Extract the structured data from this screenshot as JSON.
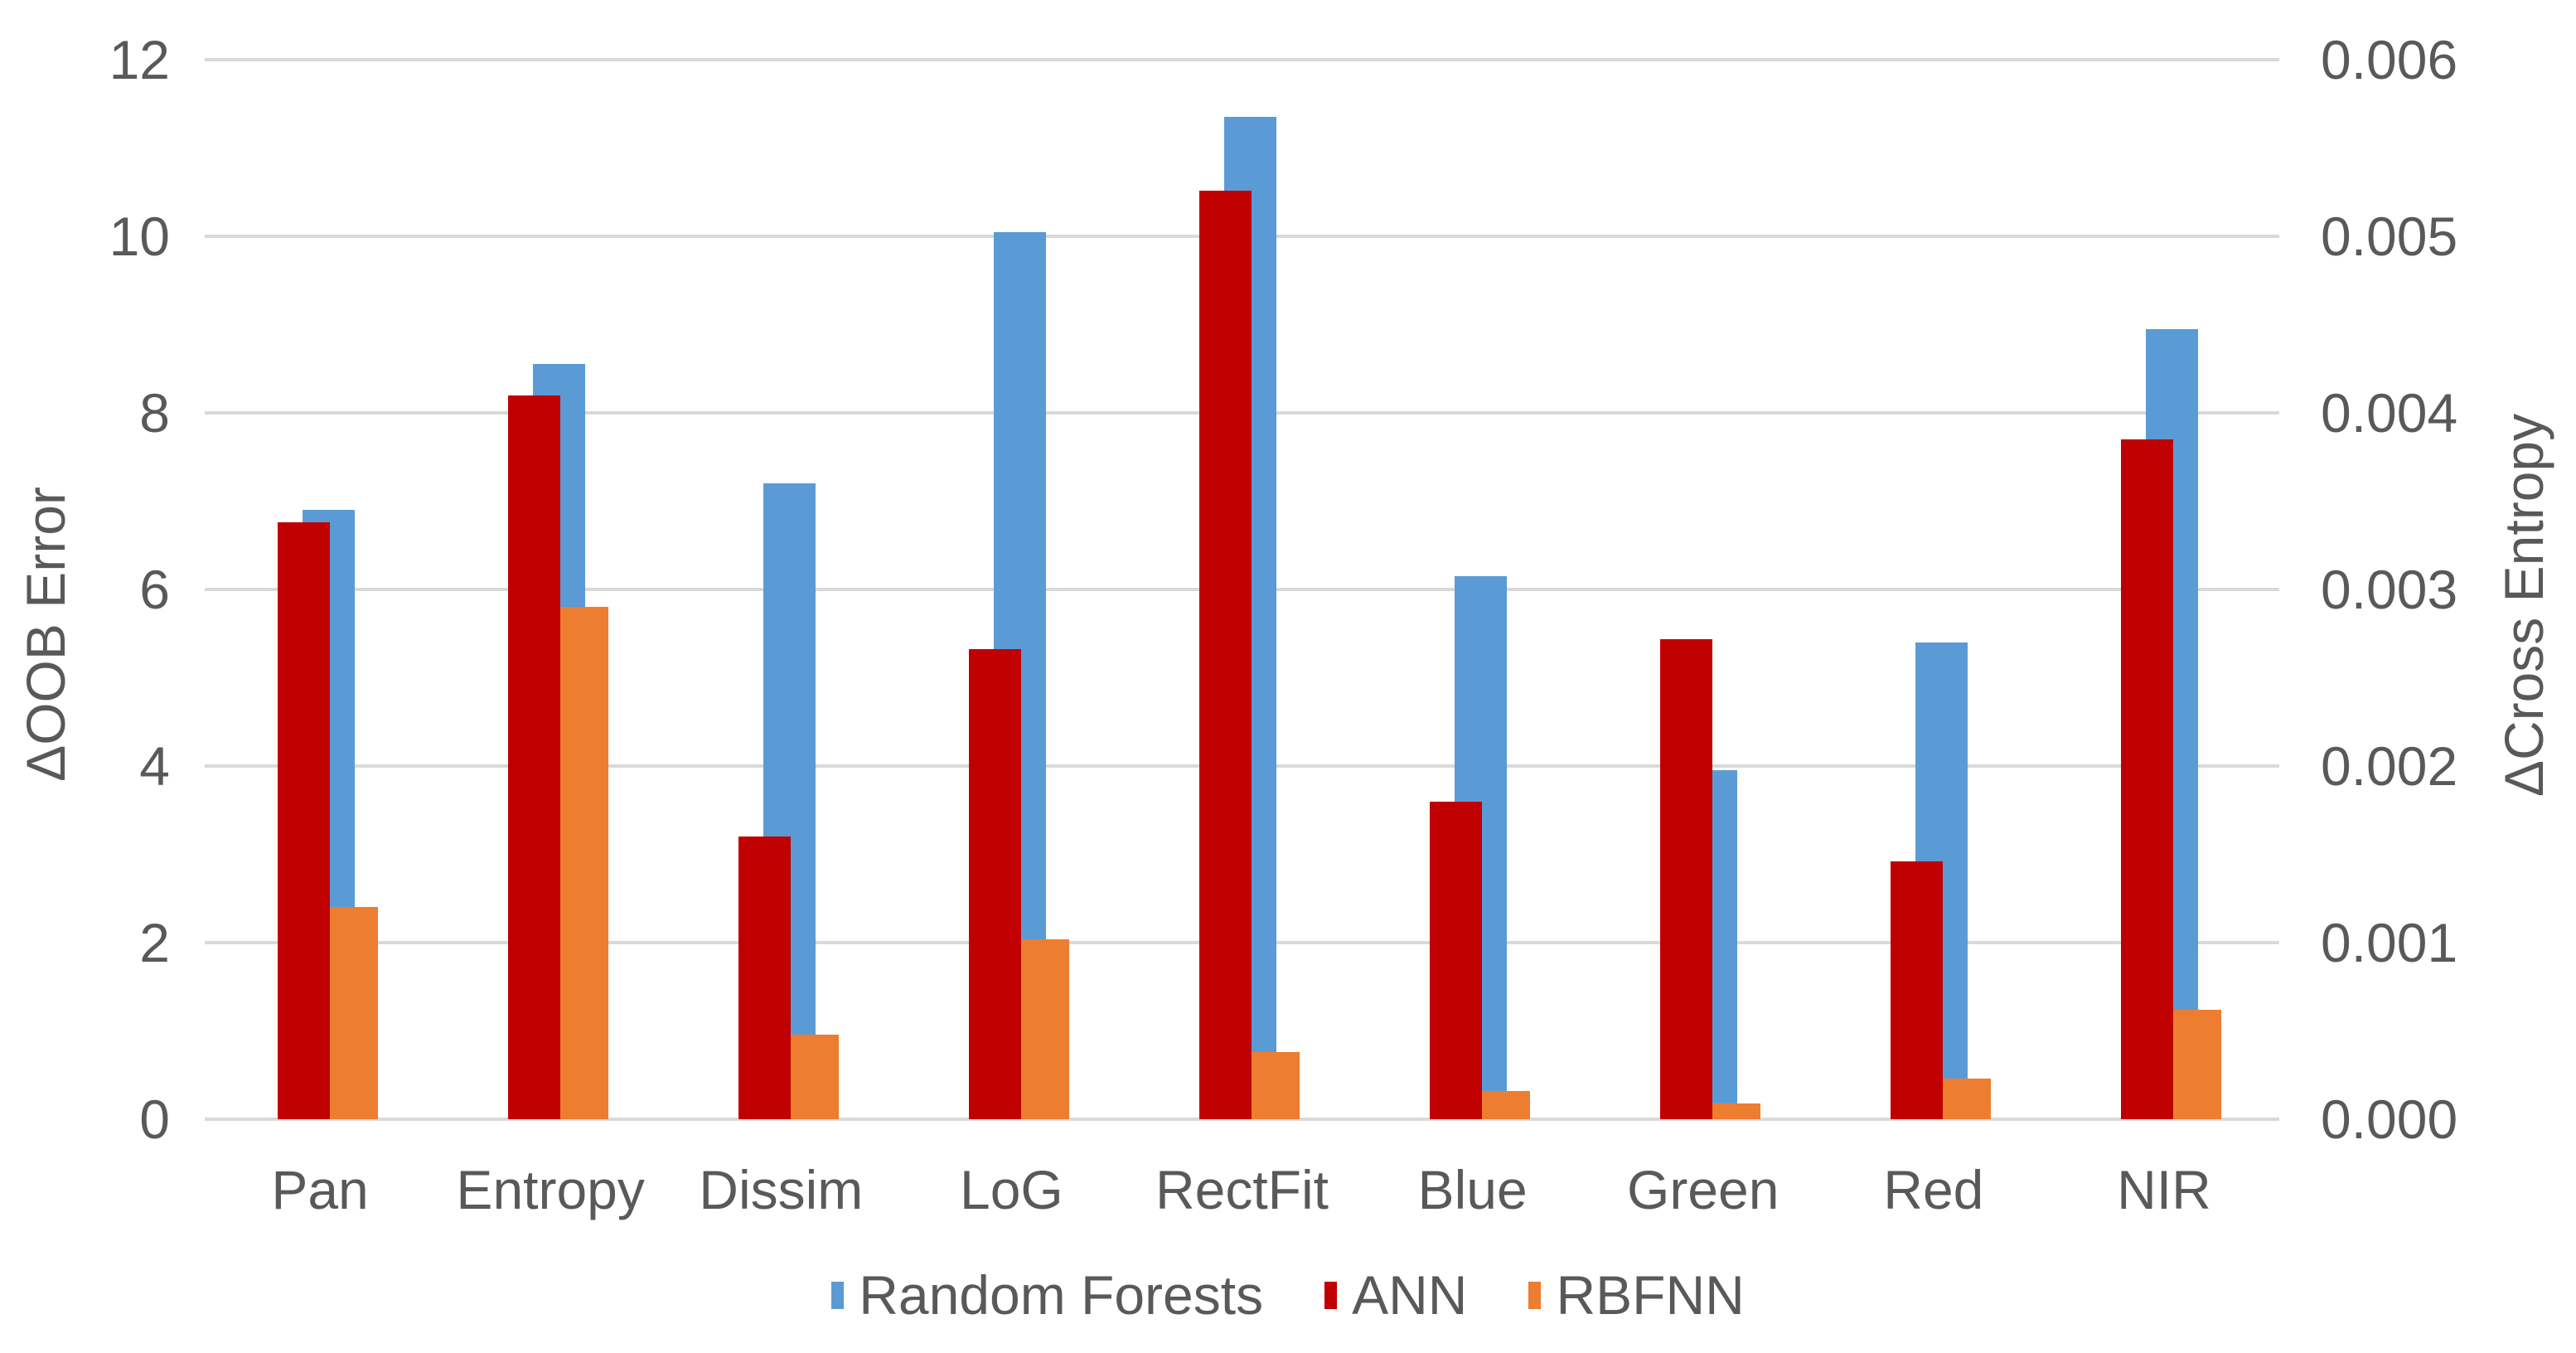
{
  "chart_data": {
    "type": "bar",
    "title": "",
    "categories": [
      "Pan",
      "Entropy",
      "Dissim",
      "LoG",
      "RectFit",
      "Blue",
      "Green",
      "Red",
      "NIR"
    ],
    "series": [
      {
        "name": "Random Forests",
        "axis": "left",
        "color": "#5b9bd5",
        "values": [
          6.9,
          8.55,
          7.2,
          10.05,
          11.35,
          6.15,
          3.95,
          5.4,
          8.95
        ]
      },
      {
        "name": "ANN",
        "axis": "right",
        "color": "#c00000",
        "values": [
          0.00338,
          0.0041,
          0.0016,
          0.00266,
          0.00526,
          0.0018,
          0.00272,
          0.00146,
          0.00385
        ]
      },
      {
        "name": "RBFNN",
        "axis": "right",
        "color": "#ed7d31",
        "values": [
          0.0012,
          0.0029,
          0.00048,
          0.00102,
          0.00038,
          0.00016,
          9e-05,
          0.00023,
          0.00062
        ]
      }
    ],
    "left_axis": {
      "label": "ΔOOB Error",
      "min": 0,
      "max": 12,
      "ticks": [
        "12",
        "10",
        "8",
        "6",
        "4",
        "2",
        "0"
      ]
    },
    "right_axis": {
      "label": "ΔCross Entropy",
      "min": 0,
      "max": 0.006,
      "ticks": [
        "0.006",
        "0.005",
        "0.004",
        "0.003",
        "0.002",
        "0.001",
        "0.000"
      ]
    },
    "grid": true,
    "gridline_color": "#d9d9d9",
    "text_color": "#595959",
    "legend_position": "bottom"
  }
}
